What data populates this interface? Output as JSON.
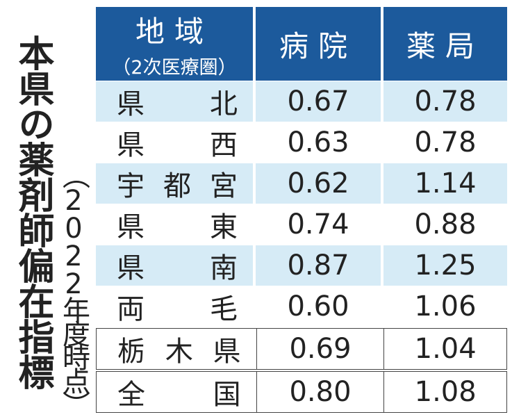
{
  "title": "本県の薬剤師偏在指標",
  "subtitle": "（2022年度時点）",
  "table": {
    "header": {
      "region": "地域",
      "region_note": "（2次医療圏）",
      "hospital": "病院",
      "pharmacy": "薬局"
    },
    "rows": [
      [
        "県北",
        "0.67",
        "0.78"
      ],
      [
        "県西",
        "0.63",
        "0.78"
      ],
      [
        "宇都宮",
        "0.62",
        "1.14"
      ],
      [
        "県東",
        "0.74",
        "0.88"
      ],
      [
        "県南",
        "0.87",
        "1.25"
      ],
      [
        "両毛",
        "0.60",
        "1.06"
      ],
      [
        "栃木県",
        "0.69",
        "1.04"
      ],
      [
        "全国",
        "0.80",
        "1.08"
      ]
    ]
  }
}
